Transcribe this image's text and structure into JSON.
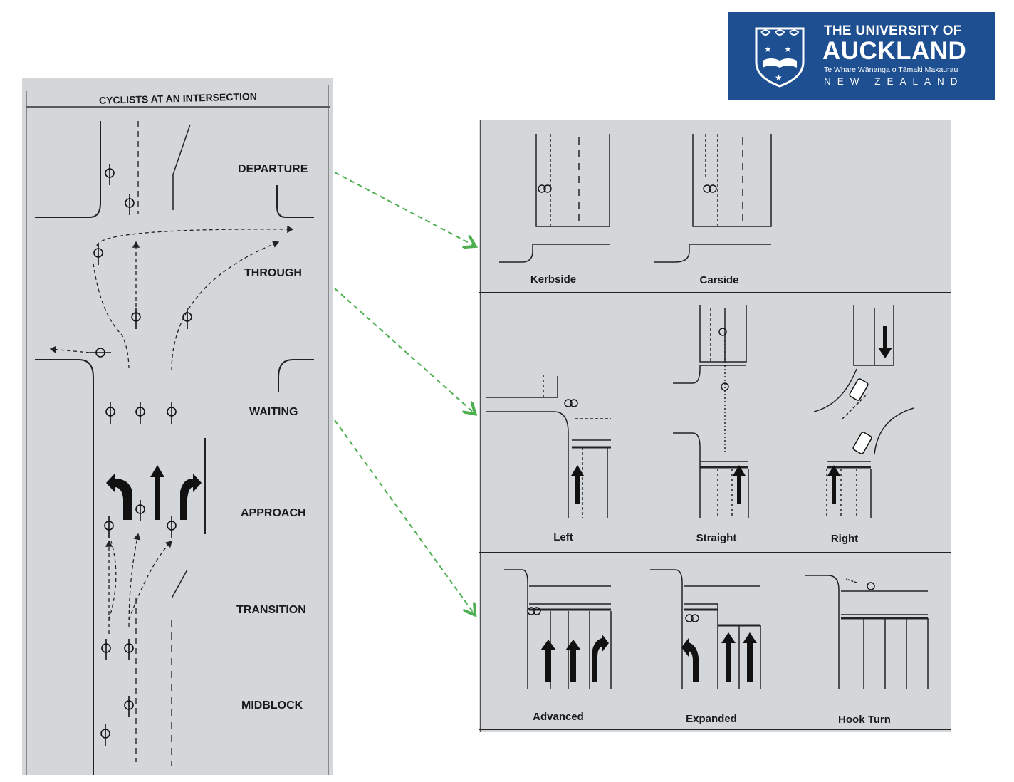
{
  "logo": {
    "line1": "THE UNIVERSITY OF",
    "line2": "AUCKLAND",
    "line3": "Te Whare Wānanga o Tāmaki Makaurau",
    "line4": "NEW ZEALAND",
    "color": "#1d4f91"
  },
  "left_figure": {
    "title": "CYCLISTS AT AN INTERSECTION",
    "stages": [
      "DEPARTURE",
      "THROUGH",
      "WAITING",
      "APPROACH",
      "TRANSITION",
      "MIDBLOCK"
    ]
  },
  "right_figure": {
    "row1": [
      "Kerbside",
      "Carside"
    ],
    "row2": [
      "Left",
      "Straight",
      "Right"
    ],
    "row3": [
      "Advanced",
      "Expanded",
      "Hook Turn"
    ]
  },
  "connector_color": "#4caf50",
  "icons": [
    "university-crest-icon",
    "cyclist-icon",
    "lane-arrow-icon",
    "car-icon",
    "dashed-arrow-icon"
  ]
}
